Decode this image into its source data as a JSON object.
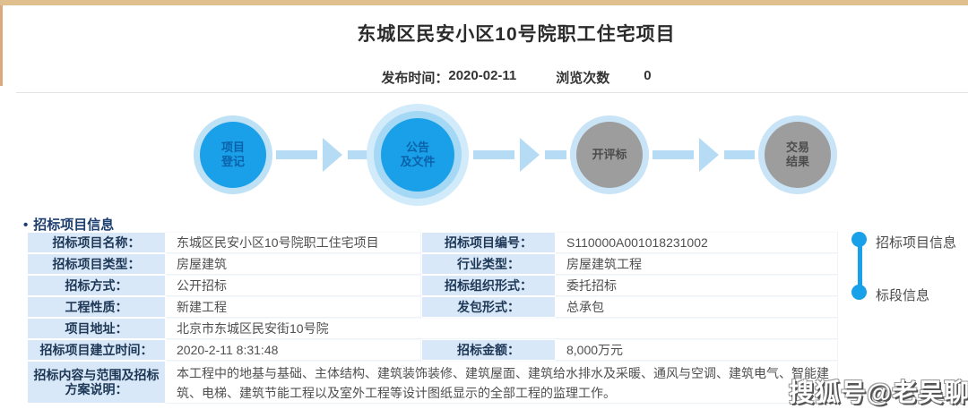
{
  "page": {
    "title": "东城区民安小区10号院职工住宅项目",
    "publish_label": "发布时间：",
    "publish_value": "2020-02-11",
    "views_label": "浏览次数",
    "views_value": "0"
  },
  "flow": {
    "steps": [
      {
        "line1": "项目",
        "line2": "登记",
        "status": "done"
      },
      {
        "line1": "公告",
        "line2": "及文件",
        "status": "current"
      },
      {
        "line1": "开评标",
        "line2": "",
        "status": "pending"
      },
      {
        "line1": "交易",
        "line2": "结果",
        "status": "pending"
      }
    ]
  },
  "section": {
    "bullet": "•",
    "title": "招标项目信息"
  },
  "table": {
    "row1": {
      "l1": "招标项目名称：",
      "v1": "东城区民安小区10号院职工住宅项目",
      "l2": "招标项目编号：",
      "v2": "S110000A001018231002"
    },
    "row2": {
      "l1": "招标项目类型：",
      "v1": "房屋建筑",
      "l2": "行业类型：",
      "v2": "房屋建筑工程"
    },
    "row3": {
      "l1": "招标方式：",
      "v1": "公开招标",
      "l2": "招标组织形式：",
      "v2": "委托招标"
    },
    "row4": {
      "l1": "工程性质：",
      "v1": "新建工程",
      "l2": "发包形式：",
      "v2": "总承包"
    },
    "row5": {
      "l1": "项目地址：",
      "v1": "北京市东城区民安街10号院"
    },
    "row6": {
      "l1": "招标项目建立时间：",
      "v1": "2020-2-11 8:31:48",
      "l2": "招标金额：",
      "v2": "8,000万元"
    },
    "row7": {
      "l1": "招标内容与范围及招标方案说明：",
      "v1": "本工程中的地基与基础、主体结构、建筑装饰装修、建筑屋面、建筑给水排水及采暖、通风与空调、建筑电气、智能建筑、电梯、建筑节能工程以及室外工程等设计图纸显示的全部工程的监理工作。"
    }
  },
  "sidebar": {
    "items": [
      {
        "label": "招标项目信息"
      },
      {
        "label": "标段信息"
      }
    ]
  },
  "watermark": {
    "text": "搜狐号@老吴聊房"
  },
  "colors": {
    "accent_blue": "#1aa0e8",
    "light_blue_ring": "#bfe1f6",
    "arrow_blue": "#b6dcf5",
    "gray_circle": "#9d9d9d",
    "label_cell_bg": "#d9e8f8",
    "navy_text": "#1d3e70",
    "gold_bar": "#dfbf8e",
    "timeline_dot": "#18a0e8"
  }
}
